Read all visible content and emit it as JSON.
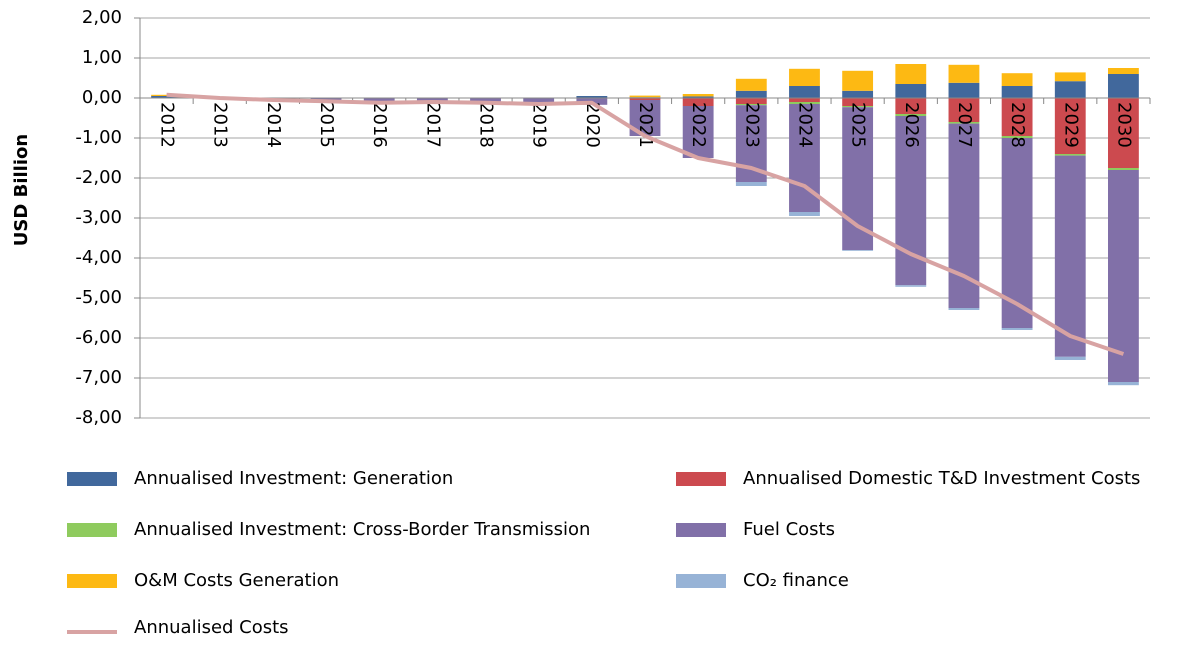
{
  "chart_data": {
    "type": "bar",
    "stacked": true,
    "y_label": "USD Billion",
    "categories": [
      "2012",
      "2013",
      "2014",
      "2015",
      "2016",
      "2017",
      "2018",
      "2019",
      "2020",
      "2021",
      "2022",
      "2023",
      "2024",
      "2025",
      "2026",
      "2027",
      "2028",
      "2029",
      "2030"
    ],
    "ylim": [
      -8,
      2
    ],
    "yticks": [
      {
        "value": 2,
        "label": "2,00"
      },
      {
        "value": 1,
        "label": "1,00"
      },
      {
        "value": 0,
        "label": "0,00"
      },
      {
        "value": -1,
        "label": "-1,00"
      },
      {
        "value": -2,
        "label": "-2,00"
      },
      {
        "value": -3,
        "label": "-3,00"
      },
      {
        "value": -4,
        "label": "-4,00"
      },
      {
        "value": -5,
        "label": "-5,00"
      },
      {
        "value": -6,
        "label": "-6,00"
      },
      {
        "value": -7,
        "label": "-7,00"
      },
      {
        "value": -8,
        "label": "-8,00"
      }
    ],
    "grid": true,
    "series": [
      {
        "name": "Annualised Investment: Generation",
        "color": "#41689c",
        "values": [
          0.05,
          0.01,
          0,
          0,
          0,
          0,
          0,
          0,
          0.05,
          0.02,
          0.04,
          0.18,
          0.3,
          0.18,
          0.35,
          0.38,
          0.3,
          0.42,
          0.6
        ]
      },
      {
        "name": "Annualised Domestic T&D Investment Costs",
        "color": "#cc4a4f",
        "values": [
          0,
          0,
          0,
          0,
          0,
          0,
          0,
          0,
          0,
          -0.05,
          -0.2,
          -0.15,
          -0.1,
          -0.2,
          -0.4,
          -0.6,
          -0.95,
          -1.4,
          -1.75
        ]
      },
      {
        "name": "Annualised Investment: Cross-Border Transmission",
        "color": "#8fcb5e",
        "values": [
          0,
          0,
          0,
          0,
          0,
          0,
          0,
          0,
          0,
          0,
          0,
          -0.03,
          -0.05,
          -0.03,
          -0.05,
          -0.04,
          -0.05,
          -0.04,
          -0.05
        ]
      },
      {
        "name": "Fuel Costs",
        "color": "#8170a8",
        "values": [
          0,
          -0.02,
          -0.05,
          -0.08,
          -0.12,
          -0.1,
          -0.12,
          -0.15,
          -0.17,
          -0.9,
          -1.3,
          -1.92,
          -2.7,
          -3.57,
          -4.23,
          -4.61,
          -4.75,
          -5.03,
          -5.3
        ]
      },
      {
        "name": "O&M Costs Generation",
        "color": "#fdb913",
        "values": [
          0.03,
          0,
          0,
          0,
          0,
          0,
          0,
          0,
          0,
          0.04,
          0.06,
          0.3,
          0.43,
          0.5,
          0.5,
          0.45,
          0.32,
          0.22,
          0.15
        ]
      },
      {
        "name": "CO₂ finance",
        "color": "#97b3d6",
        "values": [
          0,
          0,
          0,
          0,
          0,
          0,
          0,
          0,
          0,
          0,
          0,
          -0.1,
          -0.1,
          -0.02,
          -0.04,
          -0.05,
          -0.05,
          -0.08,
          -0.08
        ]
      },
      {
        "name": "Annualised Costs",
        "type": "line",
        "color": "#d8a3a3",
        "values": [
          0.08,
          0,
          -0.05,
          -0.08,
          -0.12,
          -0.1,
          -0.12,
          -0.15,
          -0.12,
          -0.95,
          -1.5,
          -1.75,
          -2.2,
          -3.2,
          -3.9,
          -4.45,
          -5.15,
          -5.95,
          -6.4
        ]
      }
    ]
  }
}
